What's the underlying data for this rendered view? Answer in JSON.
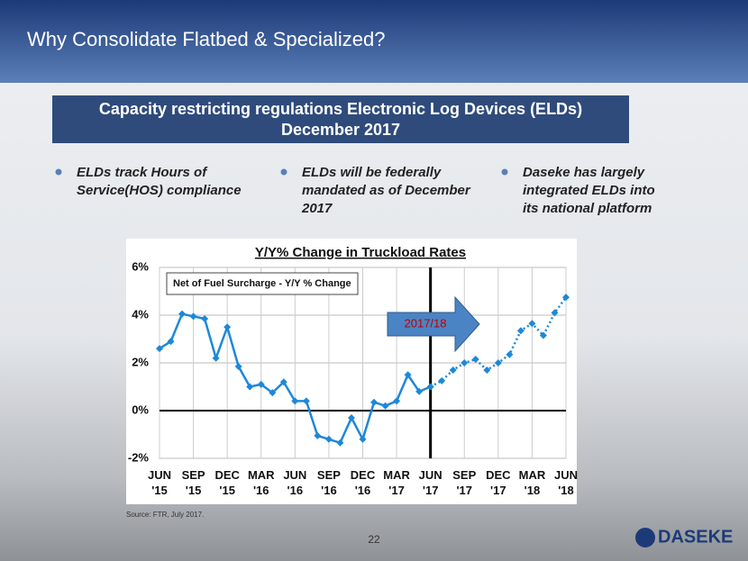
{
  "header": {
    "title": "Why Consolidate Flatbed & Specialized?"
  },
  "banner": {
    "line1": "Capacity restricting regulations Electronic Log Devices (ELDs)",
    "line2": "December 2017"
  },
  "bullets": [
    {
      "line1": "ELDs track Hours of",
      "line2": "Service(HOS) compliance"
    },
    {
      "line1": "ELDs will be federally",
      "line2": "mandated as of December",
      "line3": "2017"
    },
    {
      "line1": "Daseke has largely",
      "line2": "integrated ELDs into",
      "line3": "its national platform"
    }
  ],
  "chart_data": {
    "type": "line",
    "title": "Y/Y% Change in Truckload Rates",
    "categories": [
      "JUN '15",
      null,
      null,
      "SEP '15",
      null,
      null,
      "DEC '15",
      null,
      null,
      "MAR '16",
      null,
      null,
      "JUN '16",
      null,
      null,
      "SEP '16",
      null,
      null,
      "DEC '16",
      null,
      null,
      "MAR '17",
      null,
      null,
      "JUN '17",
      null,
      null,
      "SEP '17",
      null,
      null,
      "DEC '17",
      null,
      null,
      "MAR '18",
      null,
      null,
      "JUN '18"
    ],
    "series": [
      {
        "name": "Net of Fuel Surcharge - Y/Y % Change",
        "color": "#1e88d8",
        "values": [
          2.6,
          2.9,
          4.05,
          3.95,
          3.85,
          2.2,
          3.5,
          1.85,
          1.0,
          1.1,
          0.75,
          1.2,
          0.4,
          0.4,
          -1.05,
          -1.2,
          -1.35,
          -0.3,
          -1.2,
          0.35,
          0.2,
          0.4,
          1.5,
          0.8,
          1.0,
          null,
          null,
          null,
          null,
          null,
          null,
          null,
          null,
          null,
          null,
          null,
          null
        ]
      },
      {
        "color": "#1e88d8",
        "values": [
          null,
          null,
          null,
          null,
          null,
          null,
          null,
          null,
          null,
          null,
          null,
          null,
          null,
          null,
          null,
          null,
          null,
          null,
          null,
          null,
          null,
          null,
          null,
          null,
          1.0,
          1.25,
          1.7,
          2.0,
          2.15,
          1.7,
          2.0,
          2.35,
          3.35,
          3.65,
          3.15,
          4.1,
          4.75
        ]
      }
    ],
    "ylim": [
      -2,
      6
    ],
    "yticks": [
      {
        "value": -2,
        "label": "-2%"
      },
      {
        "value": 0,
        "label": "0%"
      },
      {
        "value": 2,
        "label": "2%"
      },
      {
        "value": 4,
        "label": "4%"
      },
      {
        "value": 6,
        "label": "6%"
      }
    ],
    "grid": true,
    "annotations": [
      {
        "text": "2017/18"
      }
    ]
  },
  "source": "Source: FTR, July 2017.",
  "page_number": "22",
  "logo": "DASEKE"
}
